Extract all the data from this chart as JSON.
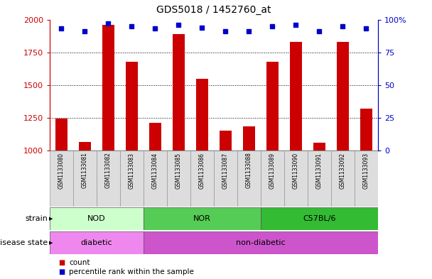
{
  "title": "GDS5018 / 1452760_at",
  "samples": [
    "GSM1133080",
    "GSM1133081",
    "GSM1133082",
    "GSM1133083",
    "GSM1133084",
    "GSM1133085",
    "GSM1133086",
    "GSM1133087",
    "GSM1133088",
    "GSM1133089",
    "GSM1133090",
    "GSM1133091",
    "GSM1133092",
    "GSM1133093"
  ],
  "counts": [
    1245,
    1065,
    1960,
    1680,
    1215,
    1890,
    1550,
    1155,
    1185,
    1680,
    1830,
    1060,
    1830,
    1320
  ],
  "percentiles": [
    93,
    91,
    97,
    95,
    93,
    96,
    94,
    91,
    91,
    95,
    96,
    91,
    95,
    93
  ],
  "ylim_left": [
    1000,
    2000
  ],
  "ylim_right": [
    0,
    100
  ],
  "yticks_left": [
    1000,
    1250,
    1500,
    1750,
    2000
  ],
  "yticks_right": [
    0,
    25,
    50,
    75,
    100
  ],
  "bar_color": "#cc0000",
  "dot_color": "#0000cc",
  "strain_groups": [
    {
      "label": "NOD",
      "start": 0,
      "end": 3,
      "color": "#ccffcc"
    },
    {
      "label": "NOR",
      "start": 4,
      "end": 8,
      "color": "#55cc55"
    },
    {
      "label": "C57BL/6",
      "start": 9,
      "end": 13,
      "color": "#33bb33"
    }
  ],
  "disease_groups": [
    {
      "label": "diabetic",
      "start": 0,
      "end": 3,
      "color": "#ee88ee"
    },
    {
      "label": "non-diabetic",
      "start": 4,
      "end": 13,
      "color": "#cc55cc"
    }
  ],
  "strain_label": "strain",
  "disease_label": "disease state",
  "legend_count_label": "count",
  "legend_percentile_label": "percentile rank within the sample",
  "bg_color": "#ffffff",
  "title_fontsize": 10,
  "axis_fontsize": 8,
  "sample_fontsize": 5.5,
  "annot_fontsize": 8
}
